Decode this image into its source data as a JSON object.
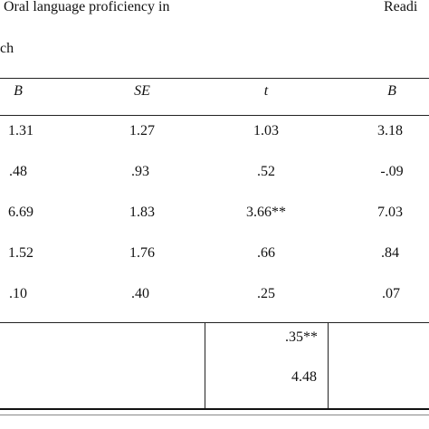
{
  "header": {
    "title_left": "Oral language proficiency in",
    "title_right": "Readi",
    "subtitle": "ch"
  },
  "columns": [
    "B",
    "SE",
    "t",
    "B"
  ],
  "rows": [
    [
      "1.31",
      "1.27",
      "1.03",
      "3.18"
    ],
    [
      ".48",
      ".93",
      ".52",
      "-.09"
    ],
    [
      "6.69",
      "1.83",
      "3.66**",
      "7.03"
    ],
    [
      "1.52",
      "1.76",
      ".66",
      ".84"
    ],
    [
      ".10",
      ".40",
      ".25",
      ".07"
    ]
  ],
  "summary": {
    "r_squared": ".35**",
    "f_value": "4.48"
  }
}
